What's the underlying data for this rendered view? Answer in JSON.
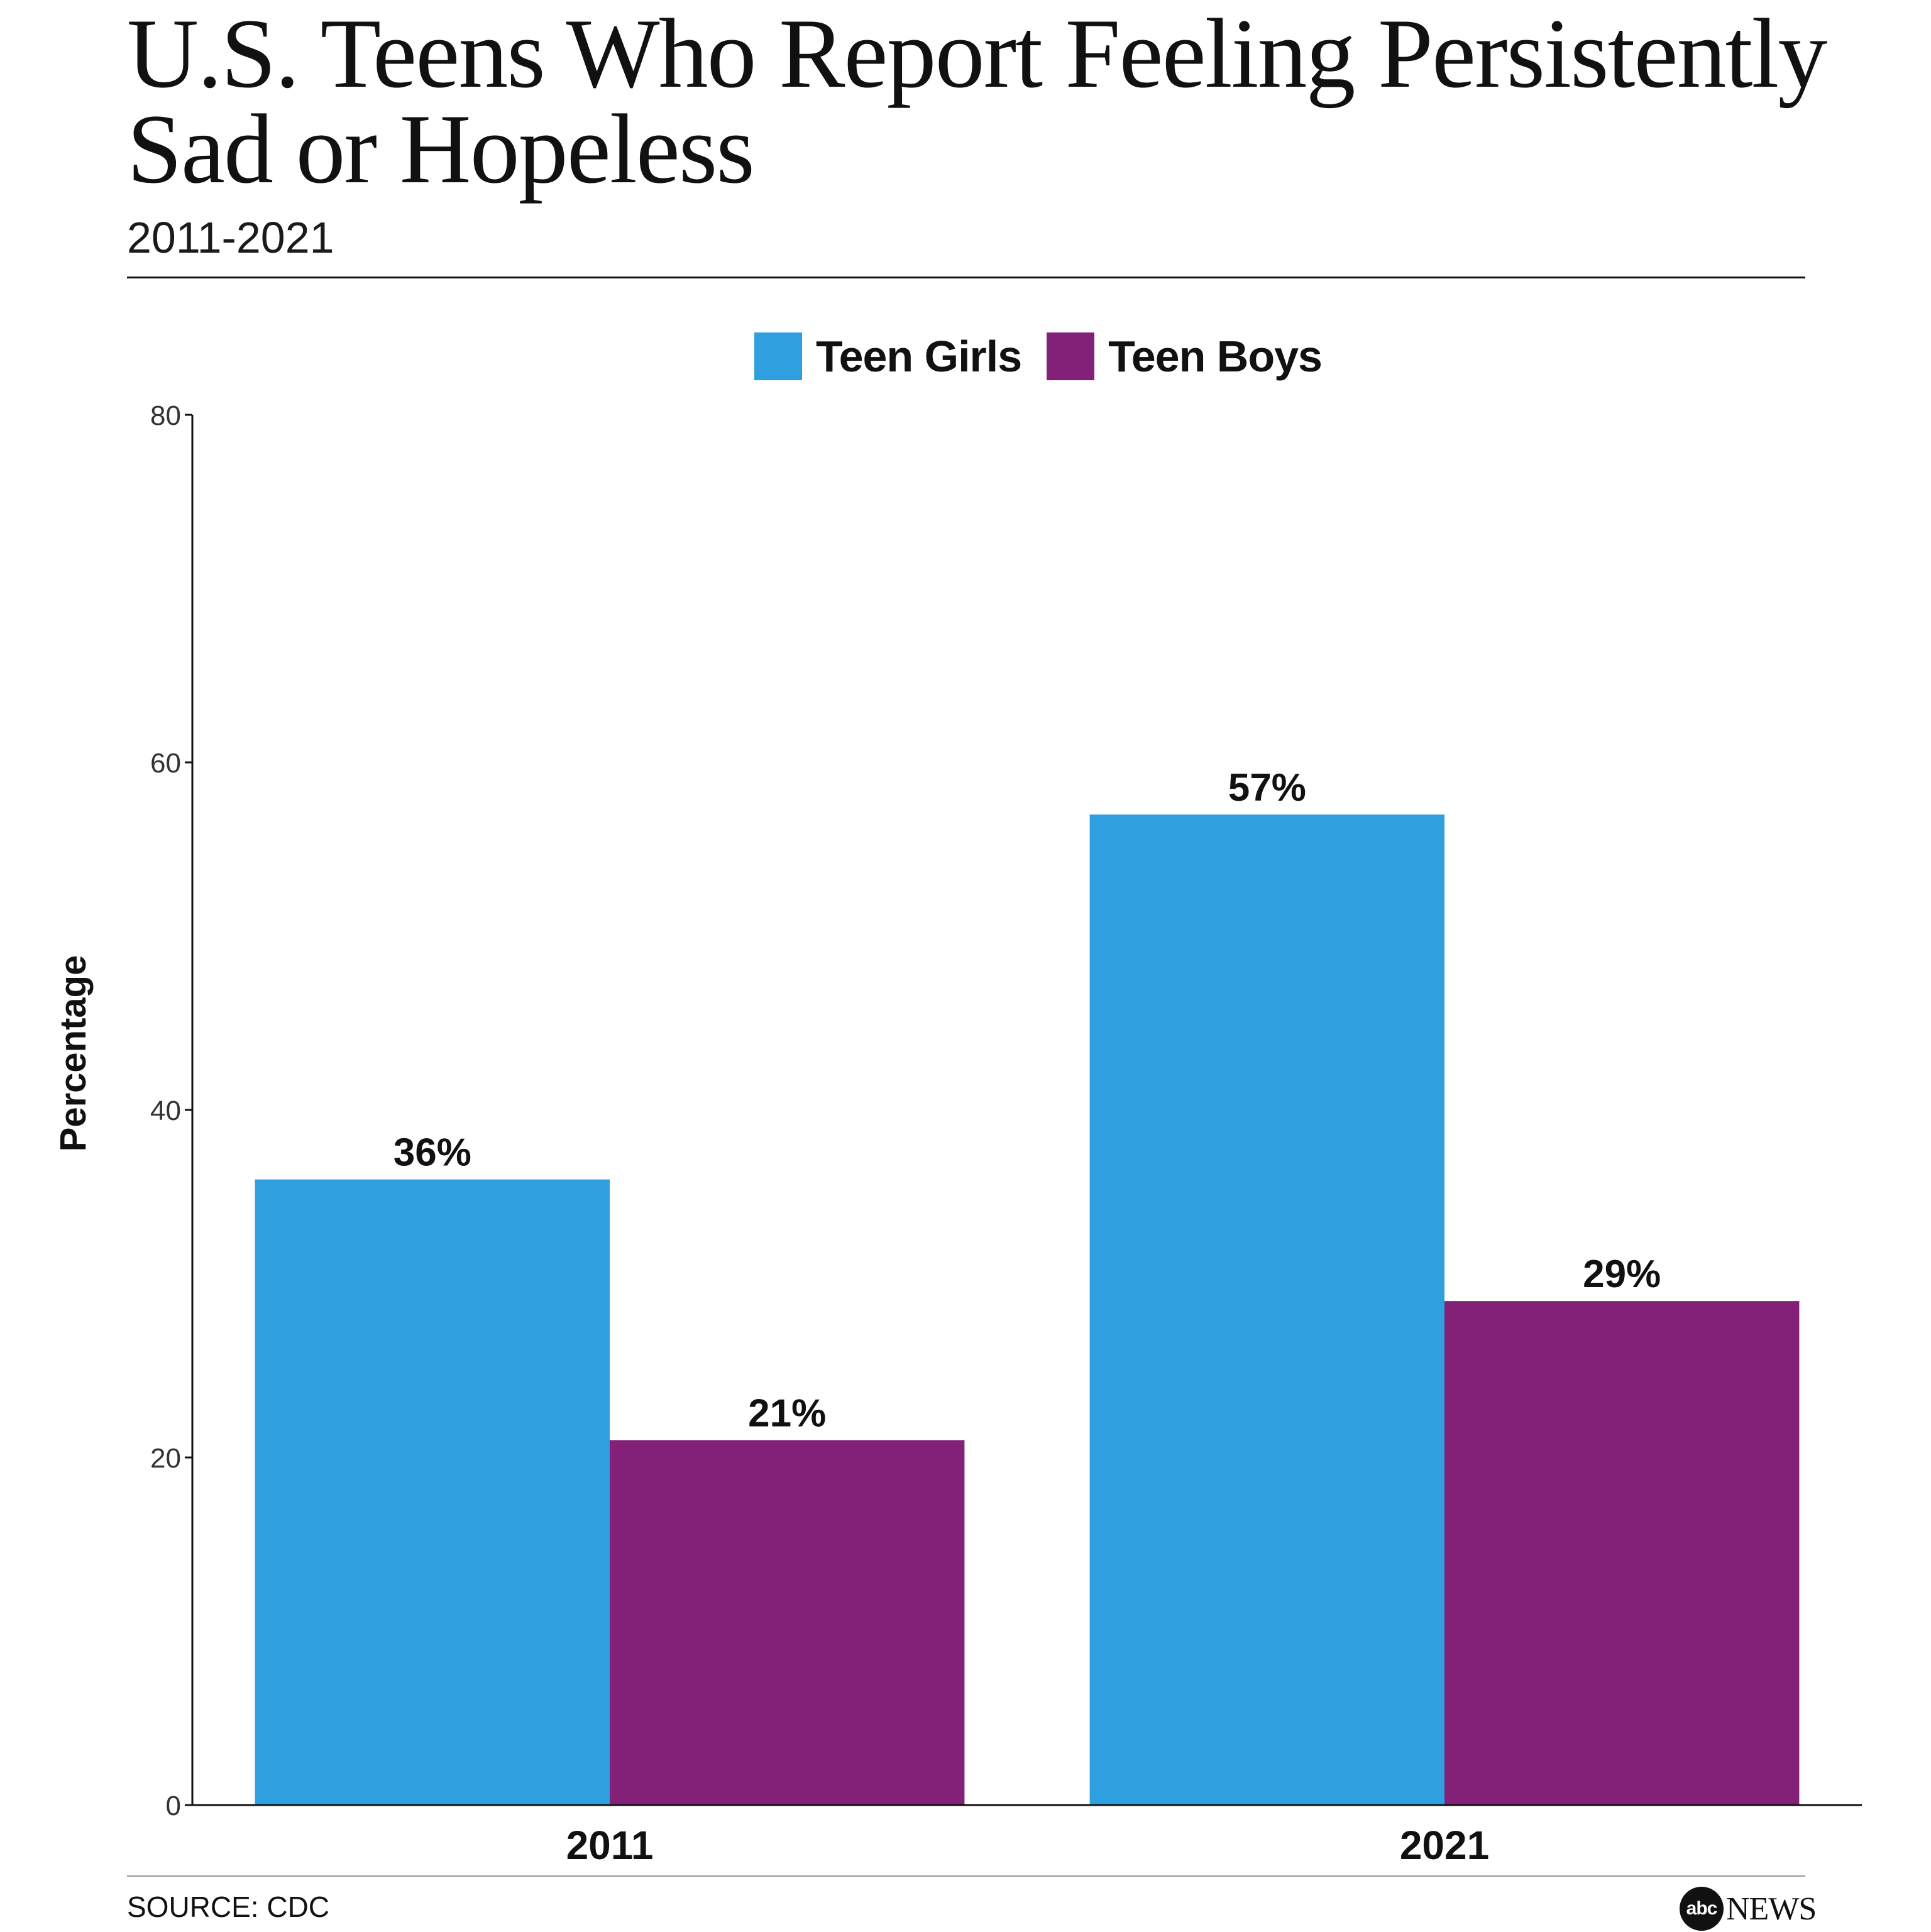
{
  "chart_data": {
    "type": "bar",
    "title": "U.S. Teens Who Report Feeling Persistently Sad or Hopeless",
    "subtitle": "2011-2021",
    "xlabel": "",
    "ylabel": "Percentage",
    "categories": [
      "2011",
      "2021"
    ],
    "series": [
      {
        "name": "Teen Girls",
        "values": [
          36,
          57
        ],
        "labels": [
          "36%",
          "57%"
        ],
        "color": "#2E9FDF"
      },
      {
        "name": "Teen Boys",
        "values": [
          21,
          29
        ],
        "labels": [
          "21%",
          "29%"
        ],
        "color": "#822177"
      }
    ],
    "ylim": [
      0,
      80
    ],
    "yticks": [
      0,
      20,
      40,
      60,
      80
    ],
    "grid": false,
    "legend": "top-center"
  },
  "source": "SOURCE: CDC",
  "logo": {
    "badge": "abc",
    "text": "NEWS"
  }
}
